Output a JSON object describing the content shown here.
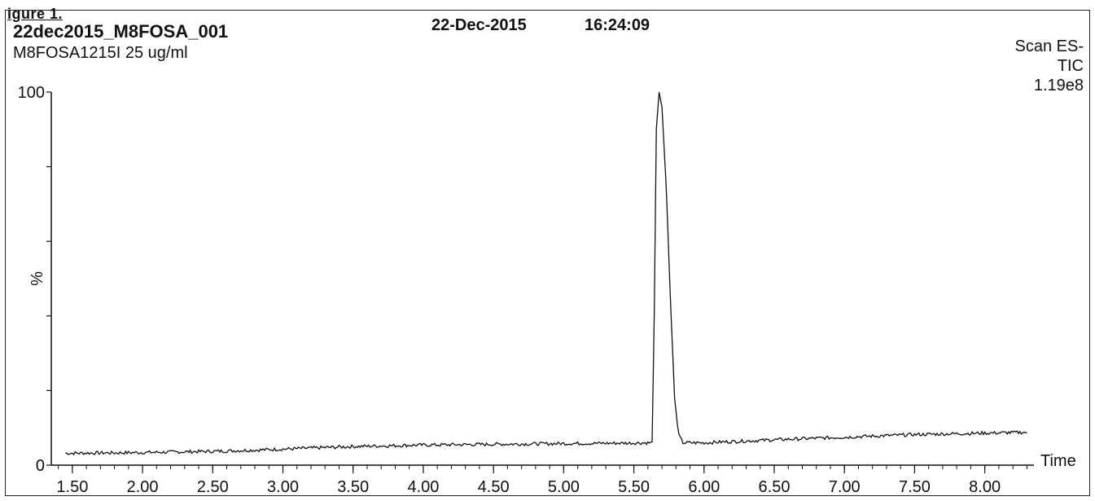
{
  "figure": {
    "caption": "igure 1.",
    "run_id": "22dec2015_M8FOSA_001",
    "sample": "M8FOSA1215I 25 ug/ml",
    "date": "22-Dec-2015",
    "time": "16:24:09",
    "scan_mode": "Scan ES-",
    "trace": "TIC",
    "max_intensity": "1.19e8"
  },
  "chart_data": {
    "type": "line",
    "xlabel": "Time",
    "ylabel": "%",
    "xlim": [
      1.35,
      8.35
    ],
    "ylim": [
      0,
      100
    ],
    "x_ticks": [
      "1.50",
      "2.00",
      "2.50",
      "3.00",
      "3.50",
      "4.00",
      "4.50",
      "5.00",
      "5.50",
      "6.00",
      "6.50",
      "7.00",
      "7.50",
      "8.00"
    ],
    "y_ticks": [
      "0",
      "100"
    ],
    "grid": false,
    "series": [
      {
        "x": [
          1.45,
          1.8,
          2.2,
          2.6,
          3.0,
          3.5,
          4.0,
          4.5,
          5.0,
          5.4,
          5.63,
          5.645,
          5.66,
          5.68,
          5.7,
          5.73,
          5.76,
          5.79,
          5.82,
          5.85,
          6.0,
          6.5,
          7.0,
          7.5,
          8.0,
          8.3
        ],
        "y": [
          3.2,
          3.3,
          3.5,
          3.8,
          4.3,
          5.0,
          5.4,
          5.6,
          5.8,
          5.9,
          6.0,
          40,
          90,
          100,
          96,
          75,
          45,
          18,
          8,
          6.0,
          6.0,
          6.8,
          7.5,
          8.2,
          8.6,
          8.8
        ]
      }
    ]
  }
}
